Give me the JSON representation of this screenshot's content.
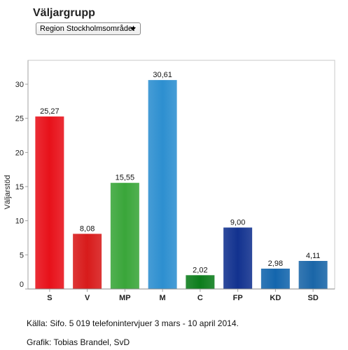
{
  "header": {
    "title": "Väljargrupp"
  },
  "filter": {
    "selected": "Region Stockholmsområdet",
    "icon": "chevron-down-icon"
  },
  "footer": {
    "source": "Källa: Sifo. 5 019 telefonintervjuer 3 mars - 10 april 2014.",
    "credit": "Grafik: Tobias Brandel, SvD"
  },
  "chart_data": {
    "type": "bar",
    "title": "",
    "xlabel": "",
    "ylabel": "Väljarstöd",
    "ylim": [
      0,
      33.5
    ],
    "yticks": [
      0,
      5,
      10,
      15,
      20,
      25,
      30
    ],
    "categories": [
      "S",
      "V",
      "MP",
      "M",
      "C",
      "FP",
      "KD",
      "SD"
    ],
    "values": [
      25.27,
      8.08,
      15.55,
      30.61,
      2.02,
      9.0,
      2.98,
      4.11
    ],
    "value_labels": [
      "25,27",
      "8,08",
      "15,55",
      "30,61",
      "2,02",
      "9,00",
      "2,98",
      "4,11"
    ],
    "colors": [
      "#e8111a",
      "#d81b1b",
      "#3aa63a",
      "#2d8fd0",
      "#0c7d1c",
      "#12328f",
      "#1466ad",
      "#1a66a8"
    ],
    "grid": false,
    "legend": "none"
  }
}
